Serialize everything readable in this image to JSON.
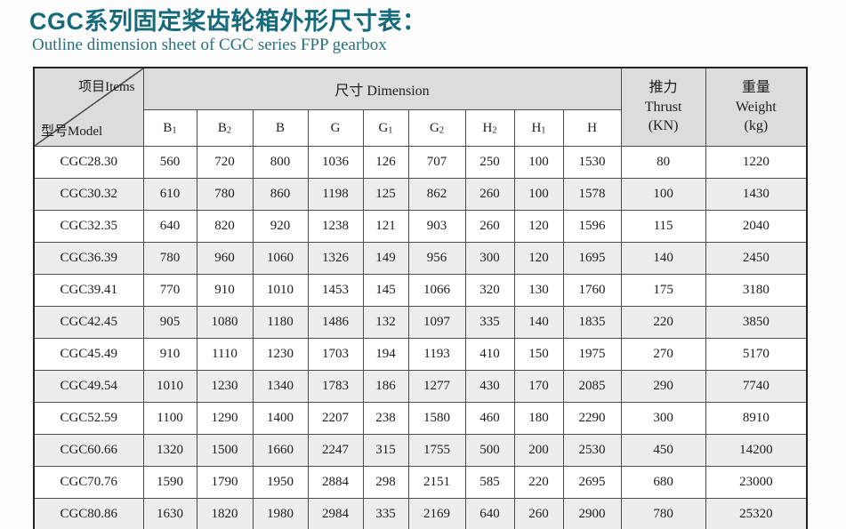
{
  "page": {
    "title": "CGC系列固定桨齿轮箱外形尺寸表：",
    "subtitle": "Outline dimension sheet of CGC series FPP gearbox"
  },
  "table": {
    "corner_top": "项目Items",
    "corner_bottom": "型号Model",
    "dimension_header": "尺寸 Dimension",
    "thrust_cn": "推力",
    "thrust_en": "Thrust",
    "thrust_unit": "(KN)",
    "weight_cn": "重量",
    "weight_en": "Weight",
    "weight_unit": "(kg)",
    "dim_cols": [
      {
        "base": "B",
        "sub": "1"
      },
      {
        "base": "B",
        "sub": "2"
      },
      {
        "base": "B",
        "sub": ""
      },
      {
        "base": "G",
        "sub": ""
      },
      {
        "base": "G",
        "sub": "1"
      },
      {
        "base": "G",
        "sub": "2"
      },
      {
        "base": "H",
        "sub": "2"
      },
      {
        "base": "H",
        "sub": "1"
      },
      {
        "base": "H",
        "sub": ""
      }
    ],
    "rows": [
      {
        "model": "CGC28.30",
        "values": [
          560,
          720,
          800,
          1036,
          126,
          707,
          250,
          100,
          1530
        ],
        "thrust": 80,
        "weight": 1220
      },
      {
        "model": "CGC30.32",
        "values": [
          610,
          780,
          860,
          1198,
          125,
          862,
          260,
          100,
          1578
        ],
        "thrust": 100,
        "weight": 1430
      },
      {
        "model": "CGC32.35",
        "values": [
          640,
          820,
          920,
          1238,
          121,
          903,
          260,
          120,
          1596
        ],
        "thrust": 115,
        "weight": 2040
      },
      {
        "model": "CGC36.39",
        "values": [
          780,
          960,
          1060,
          1326,
          149,
          956,
          300,
          120,
          1695
        ],
        "thrust": 140,
        "weight": 2450
      },
      {
        "model": "CGC39.41",
        "values": [
          770,
          910,
          1010,
          1453,
          145,
          1066,
          320,
          130,
          1760
        ],
        "thrust": 175,
        "weight": 3180
      },
      {
        "model": "CGC42.45",
        "values": [
          905,
          1080,
          1180,
          1486,
          132,
          1097,
          335,
          140,
          1835
        ],
        "thrust": 220,
        "weight": 3850
      },
      {
        "model": "CGC45.49",
        "values": [
          910,
          1110,
          1230,
          1703,
          194,
          1193,
          410,
          150,
          1975
        ],
        "thrust": 270,
        "weight": 5170
      },
      {
        "model": "CGC49.54",
        "values": [
          1010,
          1230,
          1340,
          1783,
          186,
          1277,
          430,
          170,
          2085
        ],
        "thrust": 290,
        "weight": 7740
      },
      {
        "model": "CGC52.59",
        "values": [
          1100,
          1290,
          1400,
          2207,
          238,
          1580,
          460,
          180,
          2290
        ],
        "thrust": 300,
        "weight": 8910
      },
      {
        "model": "CGC60.66",
        "values": [
          1320,
          1500,
          1660,
          2247,
          315,
          1755,
          500,
          200,
          2530
        ],
        "thrust": 450,
        "weight": 14200
      },
      {
        "model": "CGC70.76",
        "values": [
          1590,
          1790,
          1950,
          2884,
          298,
          2151,
          585,
          220,
          2695
        ],
        "thrust": 680,
        "weight": 23000
      },
      {
        "model": "CGC80.86",
        "values": [
          1630,
          1820,
          1980,
          2984,
          335,
          2169,
          640,
          260,
          2900
        ],
        "thrust": 780,
        "weight": 25320
      }
    ]
  }
}
